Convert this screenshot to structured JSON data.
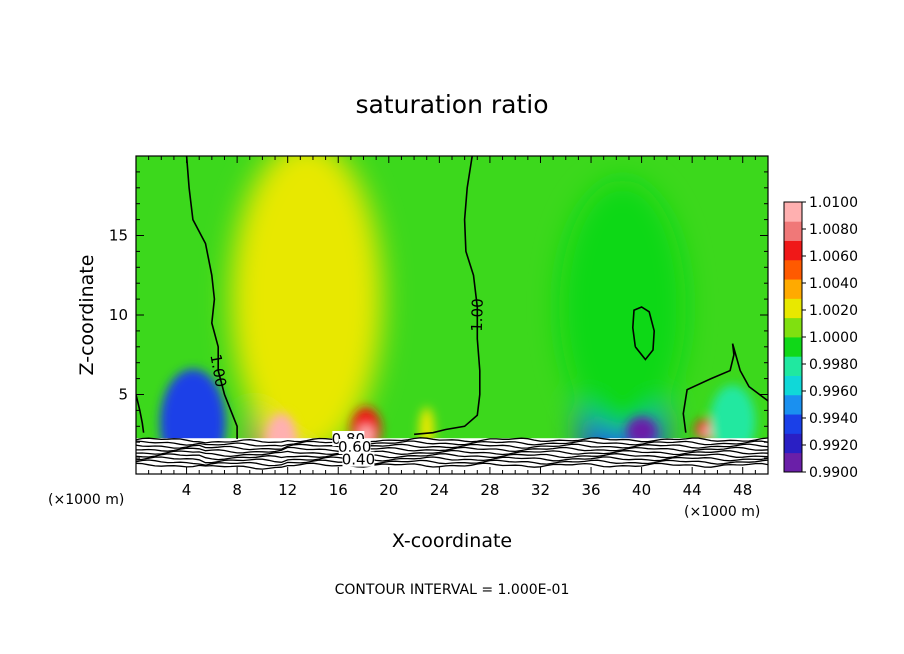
{
  "chart_data": {
    "type": "heatmap",
    "title": "saturation ratio",
    "xlabel": "X-coordinate",
    "ylabel": "Z-coordinate",
    "x_unit_left": "(×1000 m)",
    "x_unit_right": "(×1000 m)",
    "xlim": [
      0,
      50
    ],
    "ylim": [
      0,
      20
    ],
    "x_ticks": [
      4,
      8,
      12,
      16,
      20,
      24,
      28,
      32,
      36,
      40,
      44,
      48
    ],
    "y_ticks": [
      5,
      10,
      15
    ],
    "footer": "CONTOUR INTERVAL = 1.000E-01",
    "colorbar": {
      "min": 0.99,
      "max": 1.01,
      "labels": [
        "1.0100",
        "1.0080",
        "1.0060",
        "1.0040",
        "1.0020",
        "1.0000",
        "0.9980",
        "0.9960",
        "0.9940",
        "0.9920",
        "0.9900"
      ],
      "colors": [
        "#6a1fa8",
        "#2a1fc4",
        "#1a40e8",
        "#1a90f0",
        "#10d8d8",
        "#20e8a0",
        "#10d818",
        "#80e010",
        "#e8e800",
        "#ffaa00",
        "#ff5a00",
        "#f01818",
        "#f07878",
        "#ffb0b0"
      ]
    },
    "contour_labels": [
      {
        "text": "1.00",
        "x": 6.5,
        "z": 6.5,
        "rotate": 80
      },
      {
        "text": "1.00",
        "x": 27.0,
        "z": 10.0,
        "rotate": -88
      },
      {
        "text": "0.80",
        "x": 16.8,
        "z": 2.2,
        "rotate": 0
      },
      {
        "text": "0.60",
        "x": 17.3,
        "z": 1.7,
        "rotate": 0
      },
      {
        "text": "0.40",
        "x": 17.6,
        "z": 0.9,
        "rotate": 0
      }
    ],
    "contours": {
      "left_1": [
        [
          4.0,
          20.0
        ],
        [
          4.2,
          18.0
        ],
        [
          4.5,
          16.0
        ],
        [
          5.5,
          14.5
        ],
        [
          6.0,
          12.5
        ],
        [
          6.2,
          11.0
        ],
        [
          6.0,
          9.5
        ],
        [
          6.5,
          8.0
        ],
        [
          6.5,
          6.5
        ],
        [
          7.0,
          5.0
        ],
        [
          7.5,
          4.0
        ],
        [
          8.0,
          3.0
        ],
        [
          8.0,
          2.2
        ]
      ],
      "mid_1": [
        [
          26.6,
          20.0
        ],
        [
          26.2,
          18.0
        ],
        [
          26.0,
          16.0
        ],
        [
          26.1,
          14.0
        ],
        [
          26.7,
          12.5
        ],
        [
          27.0,
          10.5
        ],
        [
          27.0,
          8.5
        ],
        [
          27.2,
          6.5
        ],
        [
          27.2,
          5.0
        ],
        [
          27.0,
          3.7
        ],
        [
          26.0,
          3.0
        ],
        [
          24.5,
          2.8
        ],
        [
          23.5,
          2.6
        ],
        [
          22.0,
          2.5
        ]
      ],
      "right_1": [
        [
          39.5,
          8.0
        ],
        [
          39.3,
          9.2
        ],
        [
          39.4,
          10.3
        ],
        [
          40.0,
          10.5
        ],
        [
          40.6,
          10.2
        ],
        [
          41.0,
          9.0
        ],
        [
          40.9,
          7.8
        ],
        [
          40.3,
          7.2
        ],
        [
          39.5,
          8.0
        ]
      ],
      "right_2": [
        [
          43.5,
          2.6
        ],
        [
          43.3,
          3.8
        ],
        [
          43.6,
          5.3
        ],
        [
          45.5,
          6.0
        ],
        [
          47.0,
          6.5
        ],
        [
          47.3,
          7.5
        ],
        [
          47.2,
          8.2
        ],
        [
          47.8,
          6.5
        ],
        [
          48.5,
          5.5
        ],
        [
          50.0,
          4.6
        ]
      ],
      "left_edge": [
        [
          0.0,
          5.0
        ],
        [
          0.3,
          4.0
        ],
        [
          0.5,
          3.2
        ],
        [
          0.6,
          2.6
        ]
      ]
    },
    "hotspots": [
      {
        "name": "warm-10",
        "x": 11.5,
        "z": 3.1,
        "rx": 2.4,
        "rz": 3.6,
        "level": 1.0085
      },
      {
        "name": "warm-18",
        "x": 18.2,
        "z": 2.8,
        "rx": 1.2,
        "rz": 1.4,
        "level": 1.006
      },
      {
        "name": "warm-23",
        "x": 23.0,
        "z": 2.8,
        "rx": 0.6,
        "rz": 1.4,
        "level": 1.0025
      },
      {
        "name": "warm-45",
        "x": 45.3,
        "z": 2.8,
        "rx": 1.1,
        "rz": 0.7,
        "level": 1.006
      },
      {
        "name": "dry-4",
        "x": 4.5,
        "z": 3.2,
        "rx": 2.6,
        "rz": 3.4,
        "level": 0.9935
      },
      {
        "name": "dry-38",
        "x": 38.5,
        "z": 3.3,
        "rx": 3.4,
        "rz": 4.2,
        "level": 0.994
      },
      {
        "name": "dry-40b",
        "x": 40.0,
        "z": 2.7,
        "rx": 1.2,
        "rz": 0.9,
        "level": 0.991
      },
      {
        "name": "dry-47",
        "x": 47.2,
        "z": 3.3,
        "rx": 1.8,
        "rz": 2.3,
        "level": 0.9975
      },
      {
        "name": "mid-14",
        "x": 13.5,
        "z": 11.0,
        "rx": 6.0,
        "rz": 10.0,
        "level": 1.0018
      },
      {
        "name": "mid-38",
        "x": 38.5,
        "z": 10.5,
        "rx": 5.0,
        "rz": 8.0,
        "level": 0.9988
      }
    ]
  }
}
